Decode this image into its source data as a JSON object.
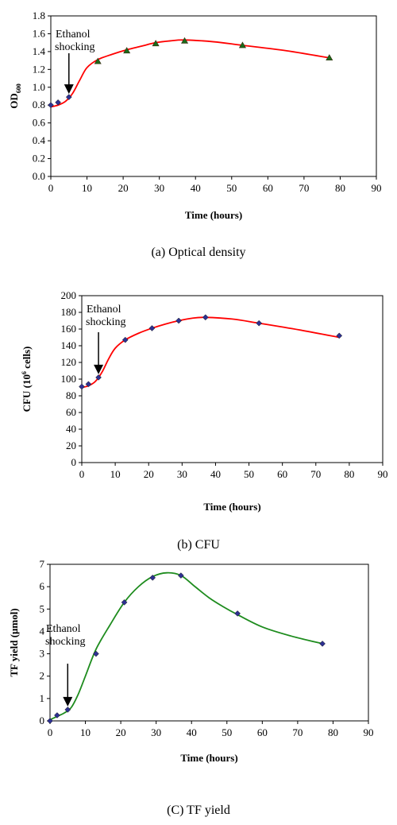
{
  "chart_data": [
    {
      "type": "scatter",
      "caption": "(a) Optical density",
      "xlabel": "Time (hours)",
      "ylabel_main": "OD",
      "ylabel_sub": "600",
      "xlim": [
        0,
        90
      ],
      "ylim": [
        0,
        1.8
      ],
      "xticks": [
        "0",
        "10",
        "20",
        "30",
        "40",
        "50",
        "60",
        "70",
        "80",
        "90"
      ],
      "yticks": [
        "0.0",
        "0.2",
        "0.4",
        "0.6",
        "0.8",
        "1.0",
        "1.2",
        "1.4",
        "1.6",
        "1.8"
      ],
      "annotation": [
        "Ethanol",
        "shocking"
      ],
      "arrow_at_x": 5,
      "grid": false,
      "curve_color": "#ff0000",
      "points": [
        {
          "x": 0,
          "y": 0.8,
          "marker": "diamond",
          "color": "#2e3192"
        },
        {
          "x": 2,
          "y": 0.83,
          "marker": "diamond",
          "color": "#2e3192"
        },
        {
          "x": 5,
          "y": 0.89,
          "marker": "diamond",
          "color": "#2e3192"
        },
        {
          "x": 13,
          "y": 1.29,
          "marker": "triangle",
          "color": "#1a6b1a"
        },
        {
          "x": 21,
          "y": 1.41,
          "marker": "triangle",
          "color": "#1a6b1a"
        },
        {
          "x": 29,
          "y": 1.49,
          "marker": "triangle",
          "color": "#1a6b1a"
        },
        {
          "x": 37,
          "y": 1.52,
          "marker": "triangle",
          "color": "#1a6b1a"
        },
        {
          "x": 53,
          "y": 1.47,
          "marker": "triangle",
          "color": "#1a6b1a"
        },
        {
          "x": 77,
          "y": 1.33,
          "marker": "triangle",
          "color": "#1a6b1a"
        }
      ],
      "curve": [
        [
          0,
          0.78
        ],
        [
          2,
          0.8
        ],
        [
          4,
          0.84
        ],
        [
          6,
          0.93
        ],
        [
          8,
          1.08
        ],
        [
          10,
          1.22
        ],
        [
          13,
          1.31
        ],
        [
          17,
          1.37
        ],
        [
          21,
          1.42
        ],
        [
          25,
          1.46
        ],
        [
          29,
          1.5
        ],
        [
          33,
          1.52
        ],
        [
          37,
          1.53
        ],
        [
          45,
          1.51
        ],
        [
          53,
          1.47
        ],
        [
          65,
          1.41
        ],
        [
          77,
          1.33
        ]
      ]
    },
    {
      "type": "scatter",
      "caption": "(b) CFU",
      "xlabel": "Time (hours)",
      "ylabel_main": "CFU (10",
      "ylabel_sup": "6",
      "ylabel_tail": " cells)",
      "xlim": [
        0,
        90
      ],
      "ylim": [
        0,
        200
      ],
      "xticks": [
        "0",
        "10",
        "20",
        "30",
        "40",
        "50",
        "60",
        "70",
        "80",
        "90"
      ],
      "yticks": [
        "0",
        "20",
        "40",
        "60",
        "80",
        "100",
        "120",
        "140",
        "160",
        "180",
        "200"
      ],
      "annotation": [
        "Ethanol",
        "shocking"
      ],
      "arrow_at_x": 5,
      "grid": false,
      "curve_color": "#ff0000",
      "points": [
        {
          "x": 0,
          "y": 91,
          "marker": "diamond",
          "color": "#2e3192"
        },
        {
          "x": 2,
          "y": 94,
          "marker": "diamond",
          "color": "#2e3192"
        },
        {
          "x": 5,
          "y": 102,
          "marker": "diamond",
          "color": "#2e3192"
        },
        {
          "x": 13,
          "y": 147,
          "marker": "diamond",
          "color": "#2e3192"
        },
        {
          "x": 21,
          "y": 161,
          "marker": "diamond",
          "color": "#2e3192"
        },
        {
          "x": 29,
          "y": 170,
          "marker": "diamond",
          "color": "#2e3192"
        },
        {
          "x": 37,
          "y": 174,
          "marker": "diamond",
          "color": "#2e3192"
        },
        {
          "x": 53,
          "y": 167,
          "marker": "diamond",
          "color": "#2e3192"
        },
        {
          "x": 77,
          "y": 152,
          "marker": "diamond",
          "color": "#2e3192"
        }
      ],
      "curve": [
        [
          0,
          90
        ],
        [
          2,
          92
        ],
        [
          4,
          97
        ],
        [
          6,
          108
        ],
        [
          8,
          124
        ],
        [
          10,
          137
        ],
        [
          13,
          147
        ],
        [
          17,
          155
        ],
        [
          21,
          161
        ],
        [
          25,
          166
        ],
        [
          29,
          170
        ],
        [
          33,
          173
        ],
        [
          37,
          174
        ],
        [
          45,
          172
        ],
        [
          53,
          167
        ],
        [
          65,
          159
        ],
        [
          77,
          150
        ]
      ]
    },
    {
      "type": "scatter",
      "caption": "(C) TF yield",
      "xlabel": "Time (hours)",
      "ylabel_main": "TF yield (μmol)",
      "xlim": [
        0,
        90
      ],
      "ylim": [
        0,
        7
      ],
      "xticks": [
        "0",
        "10",
        "20",
        "30",
        "40",
        "50",
        "60",
        "70",
        "80",
        "90"
      ],
      "yticks": [
        "0",
        "1",
        "2",
        "3",
        "4",
        "5",
        "6",
        "7"
      ],
      "annotation": [
        "Ethanol",
        "shocking"
      ],
      "arrow_at_x": 5,
      "grid": false,
      "curve_color": "#1e8c1e",
      "points": [
        {
          "x": 0,
          "y": 0.0,
          "marker": "diamond",
          "color": "#2e3192"
        },
        {
          "x": 2,
          "y": 0.25,
          "marker": "diamond",
          "color": "#2e3192"
        },
        {
          "x": 5,
          "y": 0.5,
          "marker": "diamond",
          "color": "#2e3192"
        },
        {
          "x": 13,
          "y": 3.0,
          "marker": "diamond",
          "color": "#2e3192"
        },
        {
          "x": 21,
          "y": 5.3,
          "marker": "diamond",
          "color": "#2e3192"
        },
        {
          "x": 29,
          "y": 6.4,
          "marker": "diamond",
          "color": "#2e3192"
        },
        {
          "x": 37,
          "y": 6.5,
          "marker": "diamond",
          "color": "#2e3192"
        },
        {
          "x": 53,
          "y": 4.8,
          "marker": "diamond",
          "color": "#2e3192"
        },
        {
          "x": 77,
          "y": 3.45,
          "marker": "diamond",
          "color": "#2e3192"
        }
      ],
      "curve": [
        [
          0,
          0.05
        ],
        [
          2,
          0.2
        ],
        [
          4,
          0.35
        ],
        [
          6,
          0.6
        ],
        [
          8,
          1.2
        ],
        [
          10,
          2.0
        ],
        [
          13,
          3.2
        ],
        [
          17,
          4.3
        ],
        [
          21,
          5.3
        ],
        [
          25,
          6.0
        ],
        [
          29,
          6.45
        ],
        [
          33,
          6.62
        ],
        [
          37,
          6.5
        ],
        [
          41,
          6.0
        ],
        [
          45,
          5.5
        ],
        [
          49,
          5.1
        ],
        [
          53,
          4.75
        ],
        [
          60,
          4.2
        ],
        [
          68,
          3.8
        ],
        [
          77,
          3.45
        ]
      ]
    }
  ]
}
